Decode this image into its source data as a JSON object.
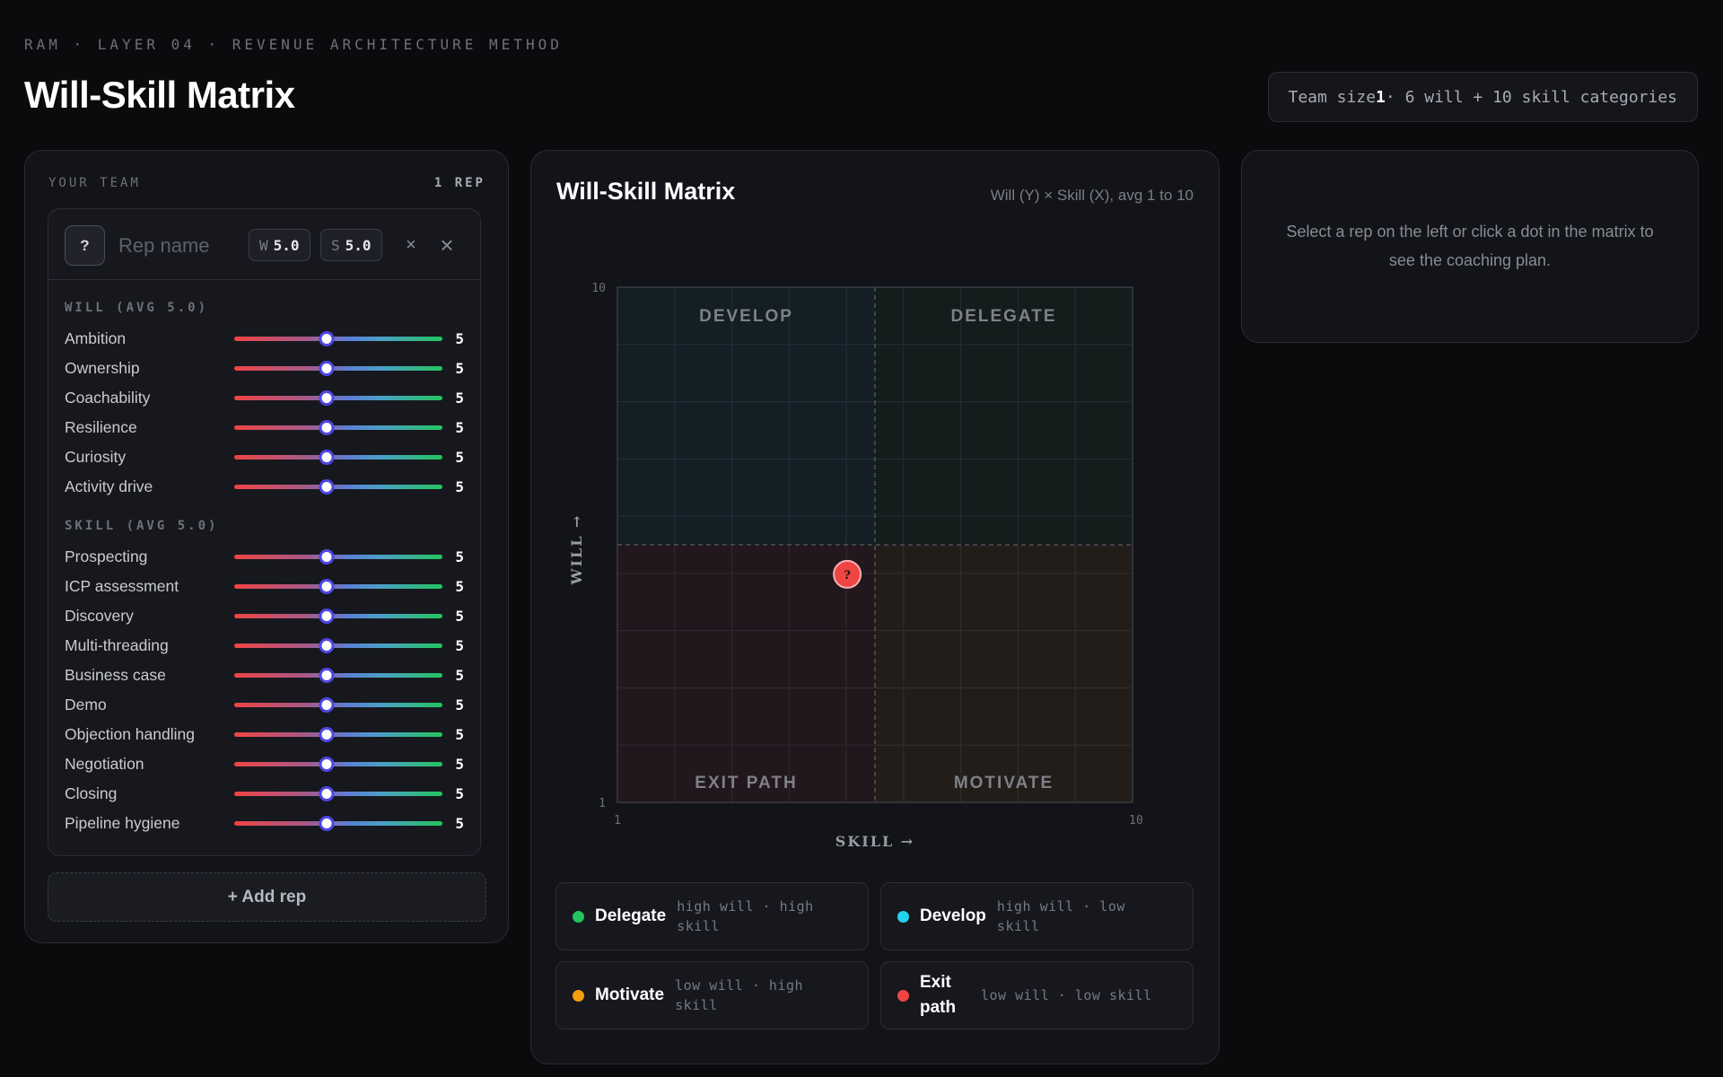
{
  "header": {
    "eyebrow": "RAM · LAYER 04 · REVENUE ARCHITECTURE METHOD",
    "title": "Will-Skill Matrix",
    "team_size_label": "Team size",
    "team_size": "1",
    "team_summary_suffix": "· 6 will + 10 skill categories"
  },
  "team": {
    "heading": "YOUR TEAM",
    "count": "1 REP",
    "add_rep_label": "+ Add rep",
    "rep": {
      "avatar": "?",
      "name_placeholder": "Rep name",
      "name_value": "",
      "will_key": "W",
      "will_avg": "5.0",
      "skill_key": "S",
      "skill_avg": "5.0",
      "remove_icon": "close-small-icon",
      "close_icon": "close-icon"
    },
    "will_section": "WILL (AVG 5.0)",
    "skill_section": "SKILL (AVG 5.0)",
    "slider_min": 1,
    "slider_max": 10,
    "will": [
      {
        "label": "Ambition",
        "value": 5
      },
      {
        "label": "Ownership",
        "value": 5
      },
      {
        "label": "Coachability",
        "value": 5
      },
      {
        "label": "Resilience",
        "value": 5
      },
      {
        "label": "Curiosity",
        "value": 5
      },
      {
        "label": "Activity drive",
        "value": 5
      }
    ],
    "skill": [
      {
        "label": "Prospecting",
        "value": 5
      },
      {
        "label": "ICP assessment",
        "value": 5
      },
      {
        "label": "Discovery",
        "value": 5
      },
      {
        "label": "Multi-threading",
        "value": 5
      },
      {
        "label": "Business case",
        "value": 5
      },
      {
        "label": "Demo",
        "value": 5
      },
      {
        "label": "Objection handling",
        "value": 5
      },
      {
        "label": "Negotiation",
        "value": 5
      },
      {
        "label": "Closing",
        "value": 5
      },
      {
        "label": "Pipeline hygiene",
        "value": 5
      }
    ]
  },
  "matrix": {
    "title": "Will-Skill Matrix",
    "subtitle": "Will (Y) × Skill (X), avg 1 to 10",
    "quadrants": {
      "top_left": "DEVELOP",
      "top_right": "DELEGATE",
      "bottom_left": "EXIT PATH",
      "bottom_right": "MOTIVATE"
    },
    "colors": {
      "develop": "#22d3ee",
      "delegate": "#22c55e",
      "motivate": "#f59e0b",
      "exit": "#ef4444"
    }
  },
  "chart_data": {
    "type": "scatter",
    "title": "Will-Skill Matrix",
    "xlabel": "SKILL →",
    "ylabel": "WILL →",
    "xlim": [
      1,
      10
    ],
    "ylim": [
      1,
      10
    ],
    "x_ticks": [
      "1",
      "10"
    ],
    "y_ticks": [
      "1",
      "10"
    ],
    "grid": true,
    "midline": 5.5,
    "points": [
      {
        "label": "?",
        "x": 5.0,
        "y": 5.0,
        "color": "#ef4444"
      }
    ]
  },
  "legend": [
    {
      "name": "Delegate",
      "desc": "high will · high skill",
      "color": "#22c55e"
    },
    {
      "name": "Develop",
      "desc": "high will · low skill",
      "color": "#22d3ee"
    },
    {
      "name": "Motivate",
      "desc": "low will · high skill",
      "color": "#f59e0b"
    },
    {
      "name": "Exit path",
      "desc": "low will · low skill",
      "color": "#ef4444"
    }
  ],
  "detail": {
    "empty_text": "Select a rep on the left or click a dot in the matrix to see the coaching plan."
  }
}
